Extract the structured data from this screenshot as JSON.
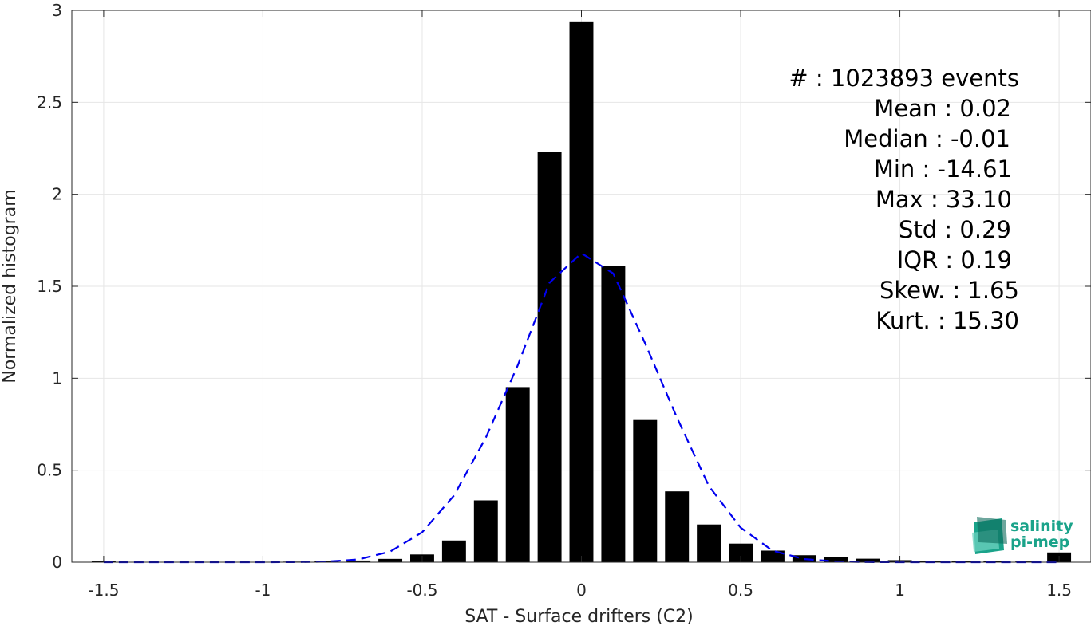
{
  "chart_data": {
    "type": "bar",
    "xlabel": "SAT - Surface drifters (C2)",
    "ylabel": "Normalized histogram",
    "xlim": [
      -1.6,
      1.6
    ],
    "ylim": [
      0,
      3
    ],
    "xticks": [
      -1.5,
      -1,
      -0.5,
      0,
      0.5,
      1,
      1.5
    ],
    "xtick_labels": [
      "-1.5",
      "-1",
      "-0.5",
      "0",
      "0.5",
      "1",
      "1.5"
    ],
    "yticks": [
      0,
      0.5,
      1,
      1.5,
      2,
      2.5,
      3
    ],
    "ytick_labels": [
      "0",
      "0.5",
      "1",
      "1.5",
      "2",
      "2.5",
      "3"
    ],
    "grid": true,
    "bar_color": "#000000",
    "bar_width": 0.075,
    "bars": {
      "x": [
        -1.5,
        -1.4,
        -1.3,
        -1.2,
        -1.1,
        -1.0,
        -0.9,
        -0.8,
        -0.7,
        -0.6,
        -0.5,
        -0.4,
        -0.3,
        -0.2,
        -0.1,
        0.0,
        0.1,
        0.2,
        0.3,
        0.4,
        0.5,
        0.6,
        0.7,
        0.8,
        0.9,
        1.0,
        1.1,
        1.2,
        1.3,
        1.4,
        1.5
      ],
      "values": [
        0.006,
        0.001,
        0.001,
        0.001,
        0.001,
        0.002,
        0.003,
        0.005,
        0.009,
        0.018,
        0.042,
        0.118,
        0.336,
        0.952,
        2.23,
        2.94,
        1.61,
        0.773,
        0.385,
        0.205,
        0.101,
        0.063,
        0.038,
        0.027,
        0.019,
        0.011,
        0.008,
        0.006,
        0.005,
        0.004,
        0.053
      ]
    },
    "fit": {
      "color": "#0000ee",
      "style": "dashed",
      "x": [
        -1.5,
        -1.4,
        -1.3,
        -1.2,
        -1.1,
        -1.0,
        -0.9,
        -0.8,
        -0.7,
        -0.6,
        -0.5,
        -0.4,
        -0.3,
        -0.2,
        -0.1,
        0.0,
        0.1,
        0.2,
        0.3,
        0.4,
        0.5,
        0.6,
        0.7,
        0.8,
        0.9,
        1.0,
        1.1,
        1.2,
        1.3,
        1.4,
        1.5
      ],
      "values": [
        0.0,
        0.0,
        0.0,
        0.0,
        0.0,
        0.0,
        0.0005,
        0.003,
        0.015,
        0.058,
        0.163,
        0.363,
        0.678,
        1.07,
        1.52,
        1.68,
        1.57,
        1.19,
        0.786,
        0.415,
        0.188,
        0.063,
        0.017,
        0.004,
        0.0008,
        0.0,
        0.0,
        0.0,
        0.0,
        0.0,
        0.0
      ]
    },
    "stats_lines": [
      "#  : 1023893 events",
      "Mean : 0.02",
      "Median : -0.01",
      "Min : -14.61",
      "Max : 33.10",
      "Std : 0.29",
      "IQR : 0.19",
      "Skew. : 1.65",
      "Kurt. : 15.30"
    ]
  },
  "logo": {
    "line1": "salinity",
    "line2": "pi-mep",
    "colors": [
      "#1aa38a",
      "#6fd3c0",
      "#0d6b5c"
    ]
  }
}
